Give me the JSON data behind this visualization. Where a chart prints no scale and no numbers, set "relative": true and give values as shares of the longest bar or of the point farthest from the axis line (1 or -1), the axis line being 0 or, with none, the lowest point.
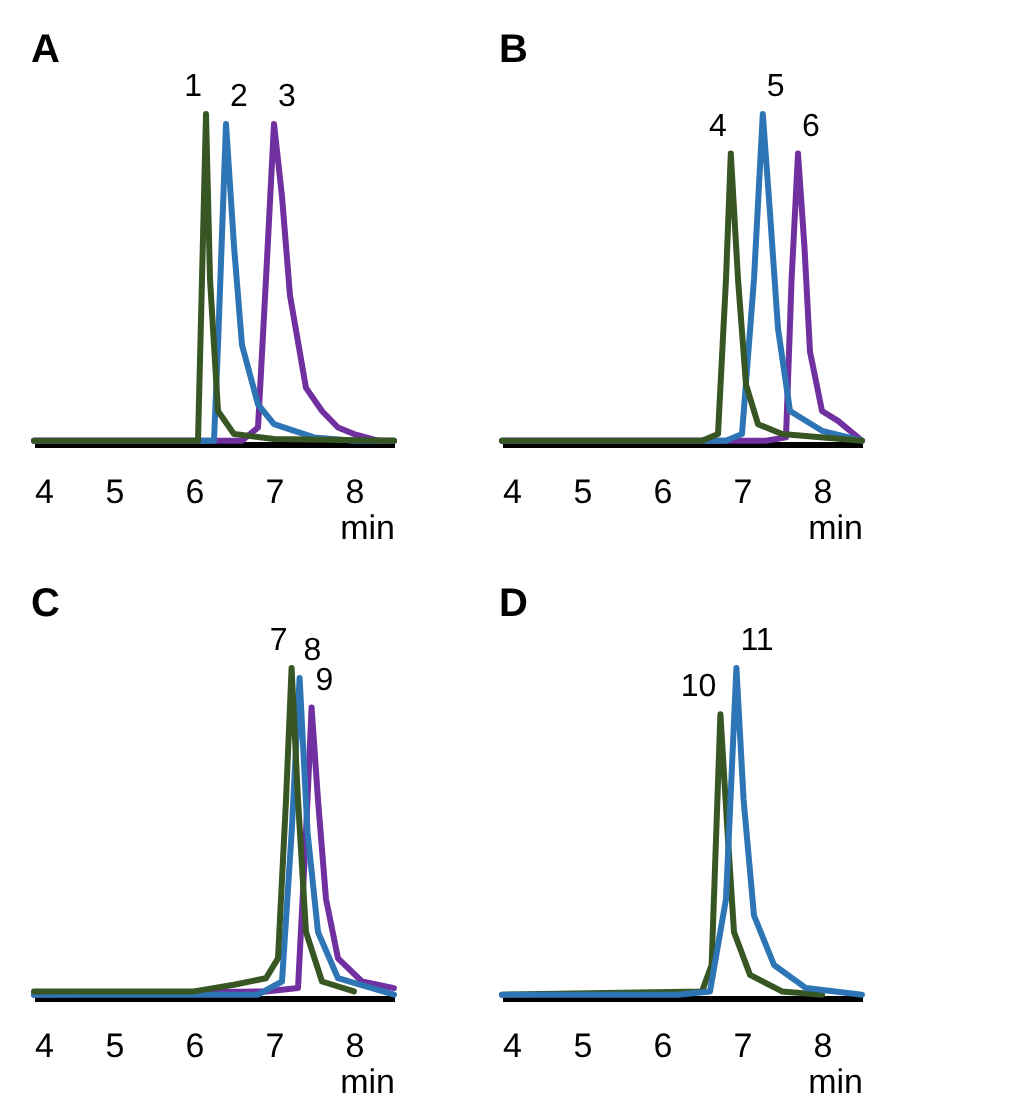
{
  "chart_data": [
    {
      "type": "line",
      "relative": true,
      "title": "A",
      "xlabel": "min",
      "xlim": [
        4,
        8.5
      ],
      "xticks": [
        4,
        5,
        6,
        7,
        8
      ],
      "grid": false,
      "series": [
        {
          "color": "#7030a0",
          "x": [
            4,
            6.6,
            6.8,
            6.9,
            7.0,
            7.1,
            7.2,
            7.4,
            7.6,
            7.8,
            8.0,
            8.3,
            8.5
          ],
          "values": [
            0.01,
            0.01,
            0.05,
            0.5,
            0.97,
            0.75,
            0.45,
            0.17,
            0.1,
            0.05,
            0.03,
            0.01,
            0.01
          ]
        },
        {
          "color": "#2e75b6",
          "x": [
            4,
            6.25,
            6.3,
            6.4,
            6.5,
            6.6,
            6.8,
            7.0,
            7.5,
            8.0,
            8.5
          ],
          "values": [
            0.01,
            0.01,
            0.3,
            0.97,
            0.6,
            0.3,
            0.12,
            0.06,
            0.02,
            0.01,
            0.01
          ]
        },
        {
          "color": "#375623",
          "x": [
            4,
            6.05,
            6.1,
            6.15,
            6.2,
            6.3,
            6.5,
            7.0,
            8.5
          ],
          "values": [
            0.01,
            0.01,
            0.5,
            1.0,
            0.5,
            0.1,
            0.03,
            0.015,
            0.01
          ]
        }
      ],
      "annotations": [
        {
          "text": "1",
          "x": 6.15,
          "y": 1.0
        },
        {
          "text": "2",
          "x": 6.4,
          "y": 0.97
        },
        {
          "text": "3",
          "x": 7.0,
          "y": 0.97
        }
      ]
    },
    {
      "type": "line",
      "relative": true,
      "title": "B",
      "xlabel": "min",
      "xlim": [
        4,
        8.5
      ],
      "xticks": [
        4,
        5,
        6,
        7,
        8
      ],
      "grid": false,
      "series": [
        {
          "color": "#7030a0",
          "x": [
            4,
            7.3,
            7.55,
            7.62,
            7.7,
            7.78,
            7.85,
            8.0,
            8.2,
            8.5
          ],
          "values": [
            0.01,
            0.01,
            0.02,
            0.5,
            0.88,
            0.6,
            0.28,
            0.1,
            0.07,
            0.01
          ]
        },
        {
          "color": "#2e75b6",
          "x": [
            4,
            6.8,
            7.0,
            7.15,
            7.26,
            7.35,
            7.45,
            7.6,
            8.0,
            8.5
          ],
          "values": [
            0.01,
            0.01,
            0.03,
            0.5,
            1.0,
            0.7,
            0.35,
            0.1,
            0.04,
            0.01
          ]
        },
        {
          "color": "#375623",
          "x": [
            4,
            6.5,
            6.7,
            6.8,
            6.86,
            6.95,
            7.05,
            7.2,
            7.5,
            8.5
          ],
          "values": [
            0.01,
            0.01,
            0.03,
            0.5,
            0.88,
            0.5,
            0.18,
            0.06,
            0.03,
            0.01
          ]
        }
      ],
      "annotations": [
        {
          "text": "4",
          "x": 6.86,
          "y": 0.88
        },
        {
          "text": "5",
          "x": 7.26,
          "y": 1.0
        },
        {
          "text": "6",
          "x": 7.7,
          "y": 0.88
        }
      ]
    },
    {
      "type": "line",
      "relative": true,
      "title": "C",
      "xlabel": "min",
      "xlim": [
        4,
        8.5
      ],
      "xticks": [
        4,
        5,
        6,
        7,
        8
      ],
      "grid": false,
      "series": [
        {
          "color": "#7030a0",
          "x": [
            4,
            6.9,
            7.3,
            7.4,
            7.47,
            7.55,
            7.65,
            7.8,
            8.1,
            8.5
          ],
          "values": [
            0.01,
            0.02,
            0.03,
            0.5,
            0.88,
            0.6,
            0.3,
            0.12,
            0.05,
            0.03
          ]
        },
        {
          "color": "#2e75b6",
          "x": [
            4,
            6.8,
            7.1,
            7.22,
            7.32,
            7.42,
            7.55,
            7.8,
            8.5
          ],
          "values": [
            0.01,
            0.01,
            0.05,
            0.5,
            0.97,
            0.5,
            0.2,
            0.06,
            0.01
          ]
        },
        {
          "color": "#375623",
          "x": [
            4,
            6.0,
            6.5,
            6.9,
            7.05,
            7.15,
            7.22,
            7.3,
            7.4,
            7.6,
            8.0
          ],
          "values": [
            0.02,
            0.02,
            0.04,
            0.06,
            0.12,
            0.6,
            1.0,
            0.6,
            0.2,
            0.05,
            0.02
          ]
        }
      ],
      "annotations": [
        {
          "text": "7",
          "x": 7.22,
          "y": 1.0
        },
        {
          "text": "8",
          "x": 7.32,
          "y": 0.97
        },
        {
          "text": "9",
          "x": 7.47,
          "y": 0.88
        }
      ]
    },
    {
      "type": "line",
      "relative": true,
      "title": "D",
      "xlabel": "min",
      "xlim": [
        4,
        8.5
      ],
      "xticks": [
        4,
        5,
        6,
        7,
        8
      ],
      "grid": false,
      "series": [
        {
          "color": "#375623",
          "x": [
            4,
            6.5,
            6.62,
            6.73,
            6.82,
            6.9,
            7.1,
            7.5,
            8.0
          ],
          "values": [
            0.01,
            0.02,
            0.1,
            0.86,
            0.5,
            0.2,
            0.07,
            0.02,
            0.01
          ]
        },
        {
          "color": "#2e75b6",
          "x": [
            4,
            6.2,
            6.6,
            6.8,
            6.93,
            7.02,
            7.15,
            7.4,
            7.8,
            8.5
          ],
          "values": [
            0.01,
            0.01,
            0.02,
            0.3,
            1.0,
            0.6,
            0.25,
            0.1,
            0.03,
            0.01
          ]
        }
      ],
      "annotations": [
        {
          "text": "10",
          "x": 6.73,
          "y": 0.86
        },
        {
          "text": "11",
          "x": 6.93,
          "y": 1.0
        }
      ]
    }
  ]
}
